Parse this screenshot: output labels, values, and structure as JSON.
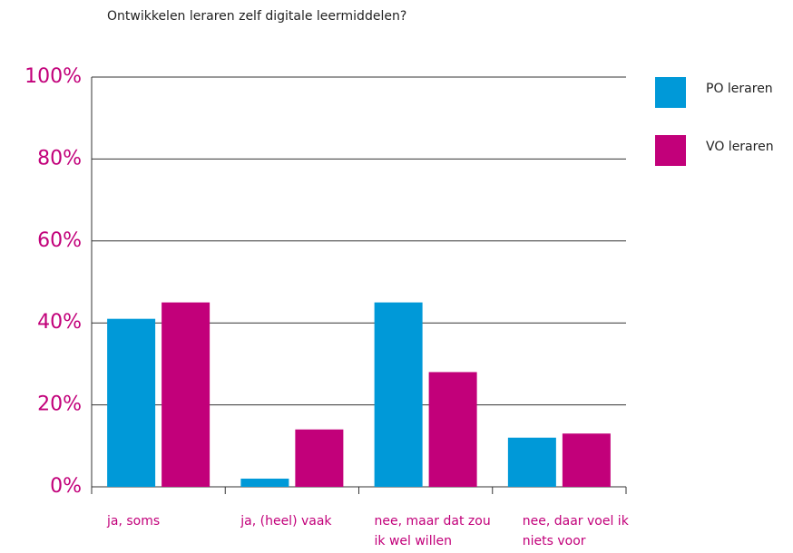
{
  "chart_data": {
    "type": "bar",
    "title": "Ontwikkelen leraren zelf digitale leermiddelen?",
    "categories": [
      "ja, soms",
      "ja, (heel) vaak",
      "nee, maar dat zou ik wel willen",
      "nee, daar voel ik niets voor"
    ],
    "series": [
      {
        "name": "PO leraren",
        "color": "#0099d8",
        "values": [
          41,
          2,
          45,
          12
        ]
      },
      {
        "name": "VO leraren",
        "color": "#c2007a",
        "values": [
          45,
          14,
          28,
          13
        ]
      }
    ],
    "ylim": [
      0,
      100
    ],
    "yticks": [
      {
        "value": 0,
        "label": "0%"
      },
      {
        "value": 20,
        "label": "20%"
      },
      {
        "value": 40,
        "label": "40%"
      },
      {
        "value": 60,
        "label": "60%"
      },
      {
        "value": 80,
        "label": "80%"
      },
      {
        "value": 100,
        "label": "100%"
      }
    ],
    "grid": true,
    "legend": "right"
  }
}
